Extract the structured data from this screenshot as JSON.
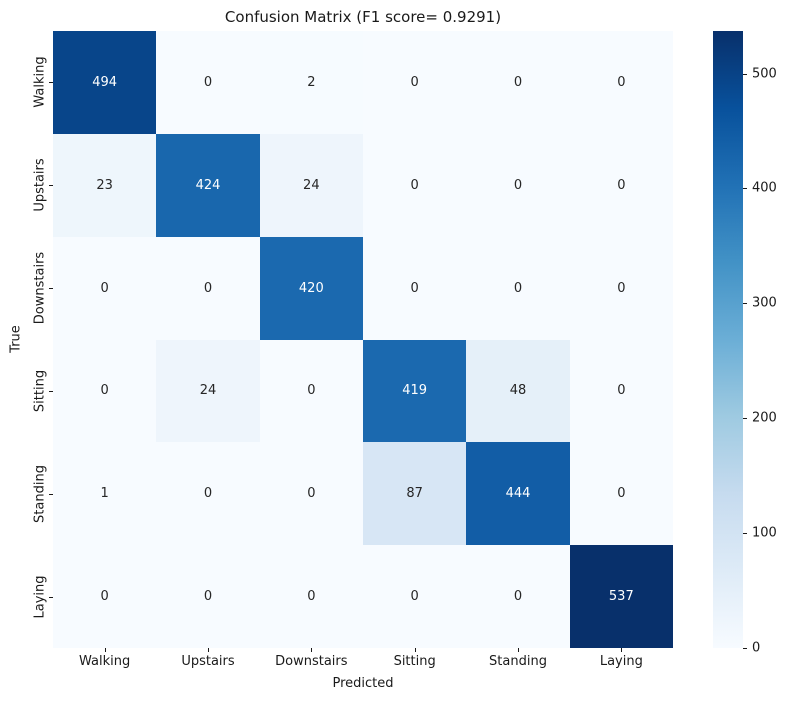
{
  "chart_data": {
    "type": "heatmap",
    "title": "Confusion Matrix (F1 score= 0.9291)",
    "xlabel": "Predicted",
    "ylabel": "True",
    "x_categories": [
      "Walking",
      "Upstairs",
      "Downstairs",
      "Sitting",
      "Standing",
      "Laying"
    ],
    "y_categories": [
      "Walking",
      "Upstairs",
      "Downstairs",
      "Sitting",
      "Standing",
      "Laying"
    ],
    "matrix": [
      [
        494,
        0,
        2,
        0,
        0,
        0
      ],
      [
        23,
        424,
        24,
        0,
        0,
        0
      ],
      [
        0,
        0,
        420,
        0,
        0,
        0
      ],
      [
        0,
        24,
        0,
        419,
        48,
        0
      ],
      [
        1,
        0,
        0,
        87,
        444,
        0
      ],
      [
        0,
        0,
        0,
        0,
        0,
        537
      ]
    ],
    "vmin": 0,
    "vmax": 537,
    "colormap": "Blues",
    "colormap_stops": [
      "#f7fbff",
      "#deebf7",
      "#c6dbef",
      "#9ecae1",
      "#6baed6",
      "#4292c6",
      "#2171b5",
      "#08519c",
      "#08306b"
    ],
    "annotation_color_dark": "#262626",
    "annotation_color_light": "#ffffff",
    "colorbar_ticks": [
      0,
      100,
      200,
      300,
      400,
      500
    ],
    "legend_position": "right",
    "grid": false
  }
}
